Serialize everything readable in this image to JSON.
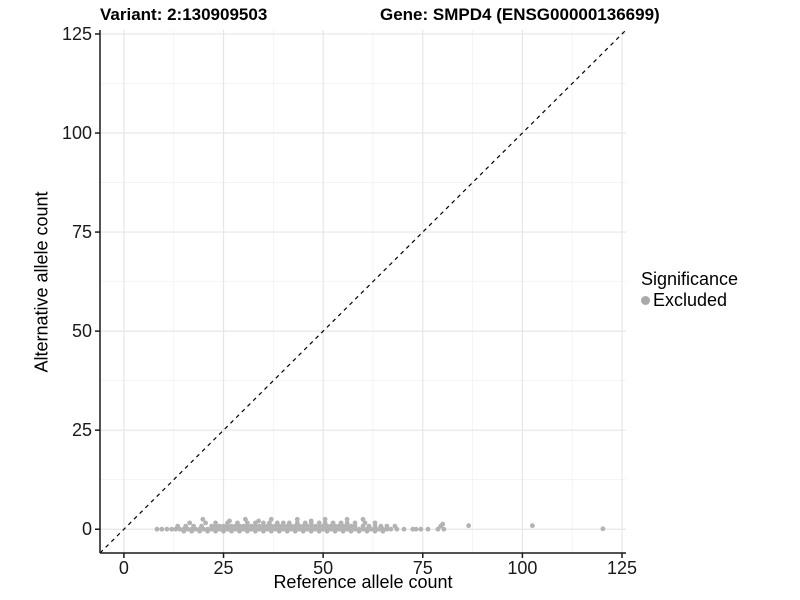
{
  "titles": {
    "variant": "Variant: 2:130909503",
    "gene": "Gene: SMPD4 (ENSG00000136699)"
  },
  "legend": {
    "title": "Significance",
    "items": [
      {
        "label": "Excluded",
        "color": "#a9a9a9"
      }
    ]
  },
  "colors": {
    "background": "#ffffff",
    "axis_line": "#1a1a1a",
    "tick_text": "#1a1a1a",
    "grid_major": "#e6e6e6",
    "grid_minor": "#f2f2f2",
    "identity_line": "#000000",
    "point": "#b3b3b3"
  },
  "chart_data": {
    "type": "scatter",
    "title_left": "Variant: 2:130909503",
    "title_right": "Gene: SMPD4 (ENSG00000136699)",
    "xlabel": "Reference allele count",
    "ylabel": "Alternative allele count",
    "x_ticks": [
      0,
      25,
      50,
      75,
      100,
      125
    ],
    "y_ticks": [
      0,
      25,
      50,
      75,
      100,
      125
    ],
    "xlim": [
      -6,
      126
    ],
    "ylim": [
      -6,
      126
    ],
    "grid": "major+minor",
    "legend_position": "right",
    "identity_line": {
      "slope": 1,
      "intercept": 0,
      "style": "dashed"
    },
    "series": [
      {
        "name": "Excluded",
        "color": "#b3b3b3",
        "points": [
          [
            8.3,
            0
          ],
          [
            9.5,
            0
          ],
          [
            10.8,
            0
          ],
          [
            12,
            0
          ],
          [
            13,
            0
          ],
          [
            14,
            0
          ],
          [
            15,
            0
          ],
          [
            16,
            0
          ],
          [
            17,
            0
          ],
          [
            18,
            0
          ],
          [
            19,
            0
          ],
          [
            20,
            0
          ],
          [
            21,
            0
          ],
          [
            22,
            0
          ],
          [
            23,
            0
          ],
          [
            24,
            0
          ],
          [
            25,
            0
          ],
          [
            26,
            0
          ],
          [
            27,
            0
          ],
          [
            28,
            0
          ],
          [
            29,
            0
          ],
          [
            30,
            0
          ],
          [
            31,
            0
          ],
          [
            32,
            0
          ],
          [
            33,
            0
          ],
          [
            34,
            0
          ],
          [
            35,
            0
          ],
          [
            36,
            0
          ],
          [
            37,
            0
          ],
          [
            38,
            0
          ],
          [
            39,
            0
          ],
          [
            40,
            0
          ],
          [
            41,
            0
          ],
          [
            42,
            0
          ],
          [
            43,
            0
          ],
          [
            44,
            0
          ],
          [
            45,
            0
          ],
          [
            46,
            0
          ],
          [
            47,
            0
          ],
          [
            48,
            0
          ],
          [
            49,
            0
          ],
          [
            50,
            0
          ],
          [
            51,
            0
          ],
          [
            52,
            0
          ],
          [
            53,
            0
          ],
          [
            54,
            0
          ],
          [
            55,
            0
          ],
          [
            56,
            0
          ],
          [
            57,
            0
          ],
          [
            58,
            0
          ],
          [
            59,
            0
          ],
          [
            60,
            0
          ],
          [
            61,
            0
          ],
          [
            62,
            0
          ],
          [
            63,
            0
          ],
          [
            64,
            0
          ],
          [
            65,
            0
          ],
          [
            66,
            0
          ],
          [
            67,
            0
          ],
          [
            15,
            -0.5
          ],
          [
            17,
            -0.5
          ],
          [
            19,
            -0.5
          ],
          [
            21,
            -0.5
          ],
          [
            23,
            -0.5
          ],
          [
            25,
            -0.5
          ],
          [
            27,
            -0.5
          ],
          [
            29,
            -0.5
          ],
          [
            31,
            -0.5
          ],
          [
            33,
            -0.5
          ],
          [
            35,
            -0.5
          ],
          [
            37,
            -0.5
          ],
          [
            39,
            -0.5
          ],
          [
            41,
            -0.5
          ],
          [
            43,
            -0.5
          ],
          [
            45,
            -0.5
          ],
          [
            47,
            -0.5
          ],
          [
            49,
            -0.5
          ],
          [
            51,
            -0.5
          ],
          [
            53,
            -0.5
          ],
          [
            55,
            -0.5
          ],
          [
            57,
            -0.5
          ],
          [
            59,
            -0.5
          ],
          [
            61,
            -0.5
          ],
          [
            63,
            -0.5
          ],
          [
            65,
            -0.5
          ],
          [
            22,
            0.8
          ],
          [
            23,
            0.8
          ],
          [
            24,
            0.8
          ],
          [
            25,
            0.8
          ],
          [
            26,
            0.8
          ],
          [
            27,
            0.8
          ],
          [
            28,
            0.8
          ],
          [
            29,
            0.8
          ],
          [
            30,
            0.8
          ],
          [
            31,
            0.8
          ],
          [
            32,
            0.8
          ],
          [
            33,
            0.8
          ],
          [
            34,
            0.8
          ],
          [
            35,
            0.8
          ],
          [
            36,
            0.8
          ],
          [
            37,
            0.8
          ],
          [
            38,
            0.8
          ],
          [
            39,
            0.8
          ],
          [
            40,
            0.8
          ],
          [
            41,
            0.8
          ],
          [
            42,
            0.8
          ],
          [
            43,
            0.8
          ],
          [
            44,
            0.8
          ],
          [
            45,
            0.8
          ],
          [
            46,
            0.8
          ],
          [
            47,
            0.8
          ],
          [
            48,
            0.8
          ],
          [
            49,
            0.8
          ],
          [
            50,
            0.8
          ],
          [
            51,
            0.8
          ],
          [
            52,
            0.8
          ],
          [
            53,
            0.8
          ],
          [
            54,
            0.8
          ],
          [
            55,
            0.8
          ],
          [
            56,
            0.8
          ],
          [
            57,
            0.8
          ],
          [
            58,
            0.8
          ],
          [
            13.5,
            0.8
          ],
          [
            15.5,
            0.8
          ],
          [
            17.5,
            0.8
          ],
          [
            19.5,
            0.8
          ],
          [
            60,
            0.8
          ],
          [
            61.5,
            0.8
          ],
          [
            63,
            0.8
          ],
          [
            64.5,
            0.8
          ],
          [
            66,
            0.8
          ],
          [
            16.5,
            1.6
          ],
          [
            20.5,
            1.6
          ],
          [
            23,
            1.6
          ],
          [
            26,
            1.6
          ],
          [
            28.5,
            1.6
          ],
          [
            31,
            1.6
          ],
          [
            33,
            1.6
          ],
          [
            35,
            1.6
          ],
          [
            36.5,
            1.6
          ],
          [
            38.5,
            1.6
          ],
          [
            40,
            1.6
          ],
          [
            41.5,
            1.6
          ],
          [
            43.5,
            1.6
          ],
          [
            45.5,
            1.6
          ],
          [
            47,
            1.6
          ],
          [
            49,
            1.6
          ],
          [
            50.5,
            1.6
          ],
          [
            52.5,
            1.6
          ],
          [
            54.5,
            1.6
          ],
          [
            56,
            1.6
          ],
          [
            58,
            1.6
          ],
          [
            60.5,
            1.6
          ],
          [
            63,
            1.6
          ],
          [
            19.8,
            2.5
          ],
          [
            30.5,
            2.5
          ],
          [
            37,
            2.5
          ],
          [
            43.5,
            2.5
          ],
          [
            50.5,
            2.5
          ],
          [
            56,
            2.5
          ],
          [
            60,
            2.5
          ],
          [
            26.5,
            2.1
          ],
          [
            33.8,
            2.1
          ],
          [
            47,
            2.1
          ],
          [
            68.5,
            0
          ],
          [
            70.3,
            0
          ],
          [
            72.5,
            0
          ],
          [
            73.3,
            0
          ],
          [
            74.5,
            0
          ],
          [
            76.3,
            0
          ],
          [
            78.8,
            0
          ],
          [
            80.3,
            0
          ],
          [
            68,
            0.8
          ],
          [
            79.5,
            0.8
          ],
          [
            80,
            1.3
          ],
          [
            86.5,
            0.9
          ],
          [
            102.5,
            0.9
          ],
          [
            120.2,
            0.1
          ]
        ]
      }
    ]
  }
}
